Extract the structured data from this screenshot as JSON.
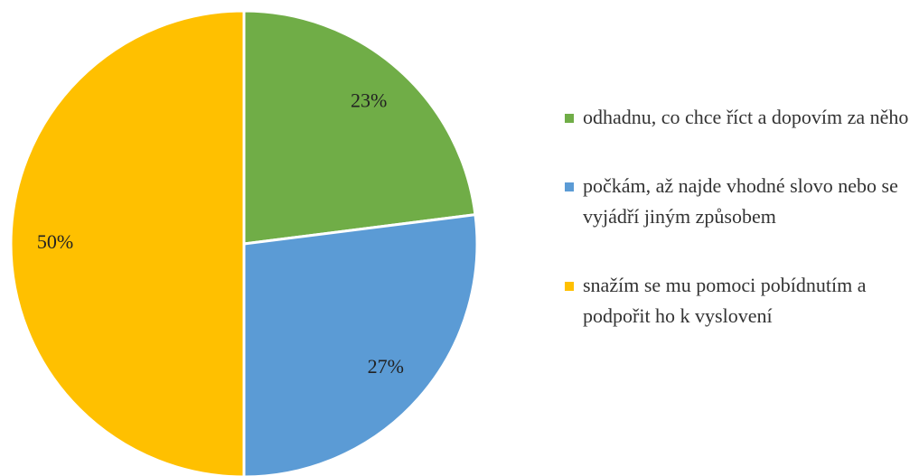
{
  "chart_data": {
    "type": "pie",
    "categories": [
      "odhadnu, co chce říct a dopovím za něho",
      "počkám, až najde vhodné slovo nebo se vyjádří jiným způsobem",
      "snažím se mu pomoci pobídnutím a podpořit ho k vyslovení"
    ],
    "values": [
      23,
      27,
      50
    ],
    "value_labels": [
      "23%",
      "27%",
      "50%"
    ],
    "colors": [
      "#70ad47",
      "#5b9bd5",
      "#ffc000"
    ],
    "legend": "right"
  }
}
